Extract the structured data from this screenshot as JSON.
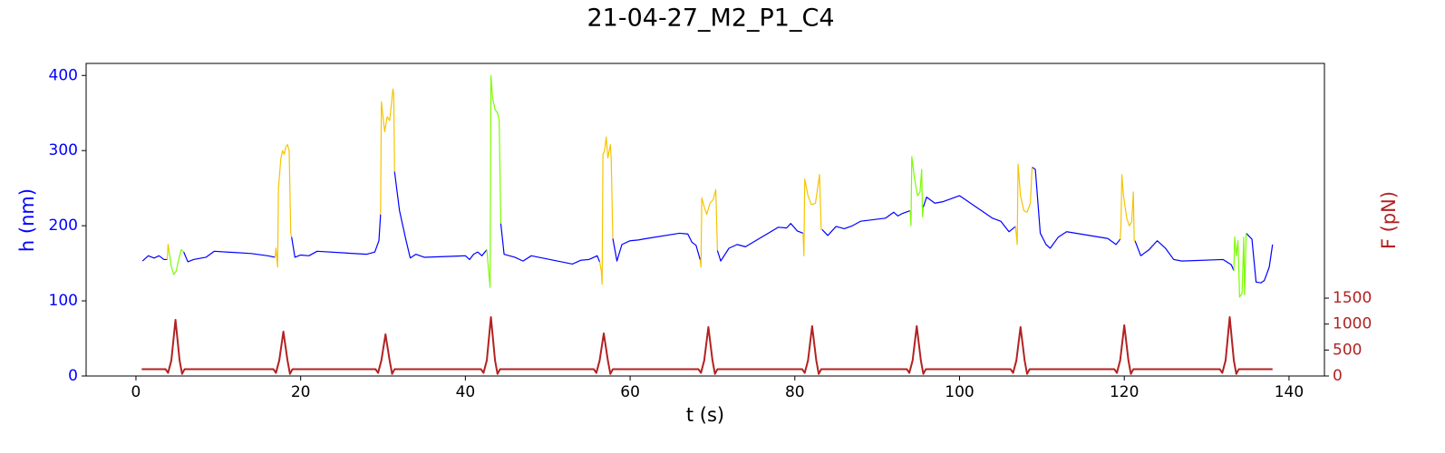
{
  "chart_data": {
    "type": "line",
    "title": "21-04-27_M2_P1_C4",
    "xlabel": "t (s)",
    "ylabel": "h (nm)",
    "y2label": "F (pN)",
    "ycolor": "#0000ff",
    "y2color": "#b22222",
    "xlim": [
      -6.05,
      144.3
    ],
    "xticks": [
      0,
      20,
      40,
      60,
      80,
      100,
      120,
      140
    ],
    "ylim": [
      0,
      416
    ],
    "yticks": [
      0,
      100,
      200,
      300,
      400
    ],
    "y2lim": [
      0,
      6020
    ],
    "y2ticks": [
      0,
      500,
      1000,
      1500
    ],
    "series": [
      {
        "color": "#0000ff",
        "x": [
          0.8,
          1.5,
          2.2,
          2.8,
          3.4,
          3.8,
          null,
          5.8,
          6.3,
          7,
          8.5,
          9.5,
          14,
          16,
          16.9,
          null,
          18.9,
          19.3,
          20,
          21,
          22,
          28,
          29,
          29.5,
          29.7,
          null,
          31.4,
          32,
          32.7,
          33.3,
          34,
          35,
          40,
          40.5,
          41,
          41.5,
          42,
          42.6,
          null,
          44.3,
          44.7,
          46,
          47,
          48,
          53,
          54,
          55,
          56,
          56.3,
          null,
          57.9,
          58.4,
          59,
          60,
          61,
          62,
          66,
          67,
          67.5,
          68,
          68.5,
          null,
          70.6,
          71,
          72,
          73,
          74,
          78,
          79,
          79.5,
          80.3,
          81,
          null,
          83.3,
          84,
          85,
          86,
          87,
          88,
          91,
          92,
          92.5,
          93,
          94,
          null,
          95.6,
          96,
          97,
          98,
          100,
          104,
          105,
          106,
          106.8,
          null,
          108.8,
          109.2,
          109.8,
          110.5,
          111,
          112,
          113,
          118,
          119,
          119.5,
          null,
          121.3,
          122,
          123,
          124,
          125,
          126,
          127,
          132,
          133,
          133.3,
          null,
          134.8,
          135.5,
          136,
          136.6,
          137,
          137.6,
          138
        ],
        "values": [
          153,
          160,
          157,
          160,
          155,
          155,
          null,
          165,
          152,
          155,
          158,
          166,
          163,
          160,
          158,
          null,
          185,
          158,
          161,
          160,
          166,
          162,
          165,
          180,
          215,
          null,
          272,
          220,
          185,
          157,
          162,
          158,
          160,
          155,
          162,
          165,
          160,
          168,
          null,
          203,
          162,
          158,
          153,
          160,
          149,
          154,
          155,
          160,
          152,
          null,
          183,
          153,
          175,
          180,
          181,
          183,
          190,
          189,
          178,
          174,
          155,
          null,
          167,
          153,
          170,
          175,
          172,
          198,
          197,
          203,
          193,
          190,
          null,
          195,
          187,
          199,
          196,
          200,
          206,
          210,
          218,
          213,
          216,
          220,
          null,
          225,
          238,
          230,
          232,
          240,
          210,
          206,
          192,
          199,
          null,
          278,
          275,
          190,
          175,
          170,
          185,
          192,
          183,
          175,
          182,
          null,
          180,
          160,
          168,
          180,
          170,
          155,
          153,
          155,
          148,
          140,
          null,
          190,
          182,
          125,
          124,
          127,
          145,
          175
        ]
      },
      {
        "color": "#f5c400",
        "x": [
          3.8,
          3.9,
          4.0,
          null,
          16.9,
          17.0,
          17.2,
          17.3,
          17.6,
          17.8,
          18.0,
          18.2,
          18.4,
          18.6,
          18.8,
          18.9,
          null,
          29.7,
          29.8,
          30.0,
          30.2,
          30.5,
          30.8,
          31.0,
          31.2,
          31.3,
          31.4,
          null,
          56.3,
          56.5,
          56.6,
          56.7,
          56.9,
          57.1,
          57.3,
          57.6,
          57.7,
          57.9,
          null,
          68.5,
          68.6,
          68.7,
          69.0,
          69.3,
          69.7,
          70.1,
          70.4,
          70.6,
          null,
          81,
          81.1,
          81.2,
          81.6,
          82.0,
          82.5,
          83.0,
          83.2,
          83.3,
          null,
          106.8,
          107.0,
          107.1,
          107.4,
          107.8,
          108.2,
          108.6,
          108.8,
          null,
          119.5,
          119.6,
          119.7,
          119.9,
          120.3,
          120.6,
          120.9,
          121.1,
          121.2,
          121.3
        ],
        "values": [
          155,
          175,
          168,
          null,
          158,
          170,
          145,
          250,
          290,
          300,
          295,
          305,
          308,
          300,
          190,
          185,
          null,
          215,
          365,
          345,
          325,
          345,
          340,
          360,
          382,
          375,
          272,
          null,
          152,
          140,
          122,
          295,
          300,
          318,
          290,
          308,
          290,
          183,
          null,
          155,
          145,
          237,
          225,
          215,
          230,
          235,
          248,
          167,
          null,
          190,
          160,
          262,
          240,
          228,
          230,
          268,
          195,
          195,
          null,
          199,
          175,
          282,
          240,
          220,
          218,
          230,
          278,
          null,
          182,
          200,
          268,
          240,
          210,
          200,
          205,
          245,
          180,
          180
        ]
      },
      {
        "color": "#7cfc00",
        "x": [
          4.0,
          4.3,
          4.6,
          4.9,
          5.1,
          5.3,
          5.5,
          5.8,
          null,
          42.6,
          42.7,
          42.9,
          43.0,
          43.1,
          43.3,
          43.6,
          43.9,
          44.1,
          44.3,
          null,
          94,
          94.1,
          94.2,
          94.5,
          94.9,
          95.2,
          95.4,
          95.5,
          95.6,
          null,
          133.3,
          133.4,
          133.6,
          133.8,
          134.0,
          134.3,
          134.5,
          134.6,
          134.8
        ],
        "values": [
          168,
          145,
          135,
          140,
          150,
          160,
          168,
          165,
          null,
          168,
          155,
          130,
          118,
          400,
          370,
          355,
          350,
          340,
          203,
          null,
          220,
          200,
          292,
          265,
          240,
          245,
          275,
          212,
          225,
          null,
          140,
          185,
          160,
          180,
          105,
          110,
          185,
          108,
          190
        ]
      },
      {
        "color": "#b22222",
        "axis": "y2",
        "x": [
          0.7,
          3.6,
          3.9,
          4.3,
          4.8,
          5.3,
          5.6,
          5.9,
          16.7,
          17.0,
          17.4,
          17.9,
          18.4,
          18.7,
          19.0,
          29.1,
          29.4,
          29.8,
          30.3,
          30.8,
          31.1,
          31.4,
          41.9,
          42.2,
          42.6,
          43.1,
          43.6,
          43.9,
          44.2,
          55.6,
          55.9,
          56.3,
          56.8,
          57.3,
          57.6,
          57.9,
          68.3,
          68.6,
          69.0,
          69.5,
          70.0,
          70.3,
          70.6,
          80.9,
          81.2,
          81.6,
          82.1,
          82.6,
          82.9,
          83.2,
          93.6,
          93.9,
          94.3,
          94.8,
          95.3,
          95.6,
          95.9,
          106.2,
          106.5,
          106.9,
          107.4,
          107.9,
          108.2,
          108.5,
          118.8,
          119.1,
          119.5,
          120.0,
          120.5,
          120.8,
          121.1,
          131.6,
          131.9,
          132.3,
          132.8,
          133.3,
          133.6,
          133.9,
          138.0
        ],
        "values": [
          130,
          130,
          60,
          300,
          1082,
          300,
          40,
          130,
          130,
          60,
          300,
          855,
          300,
          40,
          130,
          130,
          60,
          300,
          803,
          300,
          40,
          130,
          130,
          60,
          300,
          1134,
          300,
          40,
          130,
          130,
          60,
          300,
          820,
          300,
          40,
          130,
          130,
          60,
          300,
          942,
          300,
          40,
          130,
          130,
          60,
          300,
          960,
          300,
          40,
          130,
          130,
          60,
          300,
          960,
          300,
          40,
          130,
          130,
          60,
          300,
          942,
          300,
          40,
          130,
          130,
          60,
          300,
          977,
          300,
          40,
          130,
          130,
          60,
          300,
          1134,
          300,
          40,
          130,
          130
        ]
      }
    ]
  }
}
